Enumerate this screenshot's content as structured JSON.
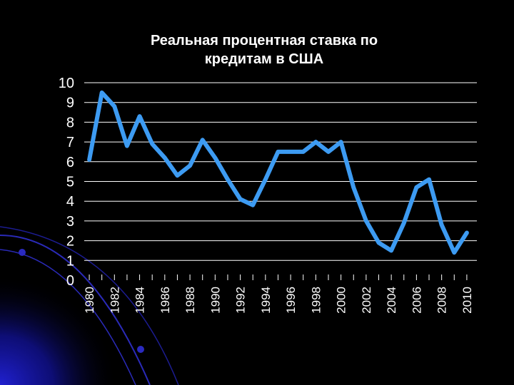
{
  "colors": {
    "background": "#000000",
    "line": "#3d9bf2",
    "grid": "#ffffff",
    "text": "#ffffff",
    "decor": "#1a1aa8"
  },
  "chart_data": {
    "type": "line",
    "title_lines": [
      "Реальная процентная ставка по",
      "кредитам в США"
    ],
    "xlabel": "",
    "ylabel": "",
    "ylim": [
      0,
      10
    ],
    "y_ticks": [
      0,
      1,
      2,
      3,
      4,
      5,
      6,
      7,
      8,
      9,
      10
    ],
    "x_tick_labels": [
      "1980",
      "1982",
      "1984",
      "1986",
      "1988",
      "1990",
      "1992",
      "1994",
      "1996",
      "1998",
      "2000",
      "2002",
      "2004",
      "2006",
      "2008",
      "2010"
    ],
    "grid": true,
    "legend": "none",
    "series": [
      {
        "x": [
          1980,
          1981,
          1982,
          1983,
          1984,
          1985,
          1986,
          1987,
          1988,
          1989,
          1990,
          1991,
          1992,
          1993,
          1994,
          1995,
          1996,
          1997,
          1998,
          1999,
          2000,
          2001,
          2002,
          2003,
          2004,
          2005,
          2006,
          2007,
          2008,
          2009,
          2010
        ],
        "values": [
          6.1,
          9.5,
          8.8,
          6.8,
          8.3,
          6.9,
          6.2,
          5.3,
          5.8,
          7.1,
          6.2,
          5.1,
          4.1,
          3.8,
          5.1,
          6.5,
          6.5,
          6.5,
          7.0,
          6.5,
          7.0,
          4.7,
          3.0,
          1.9,
          1.5,
          2.9,
          4.7,
          5.1,
          2.8,
          1.4,
          2.4
        ]
      }
    ]
  }
}
